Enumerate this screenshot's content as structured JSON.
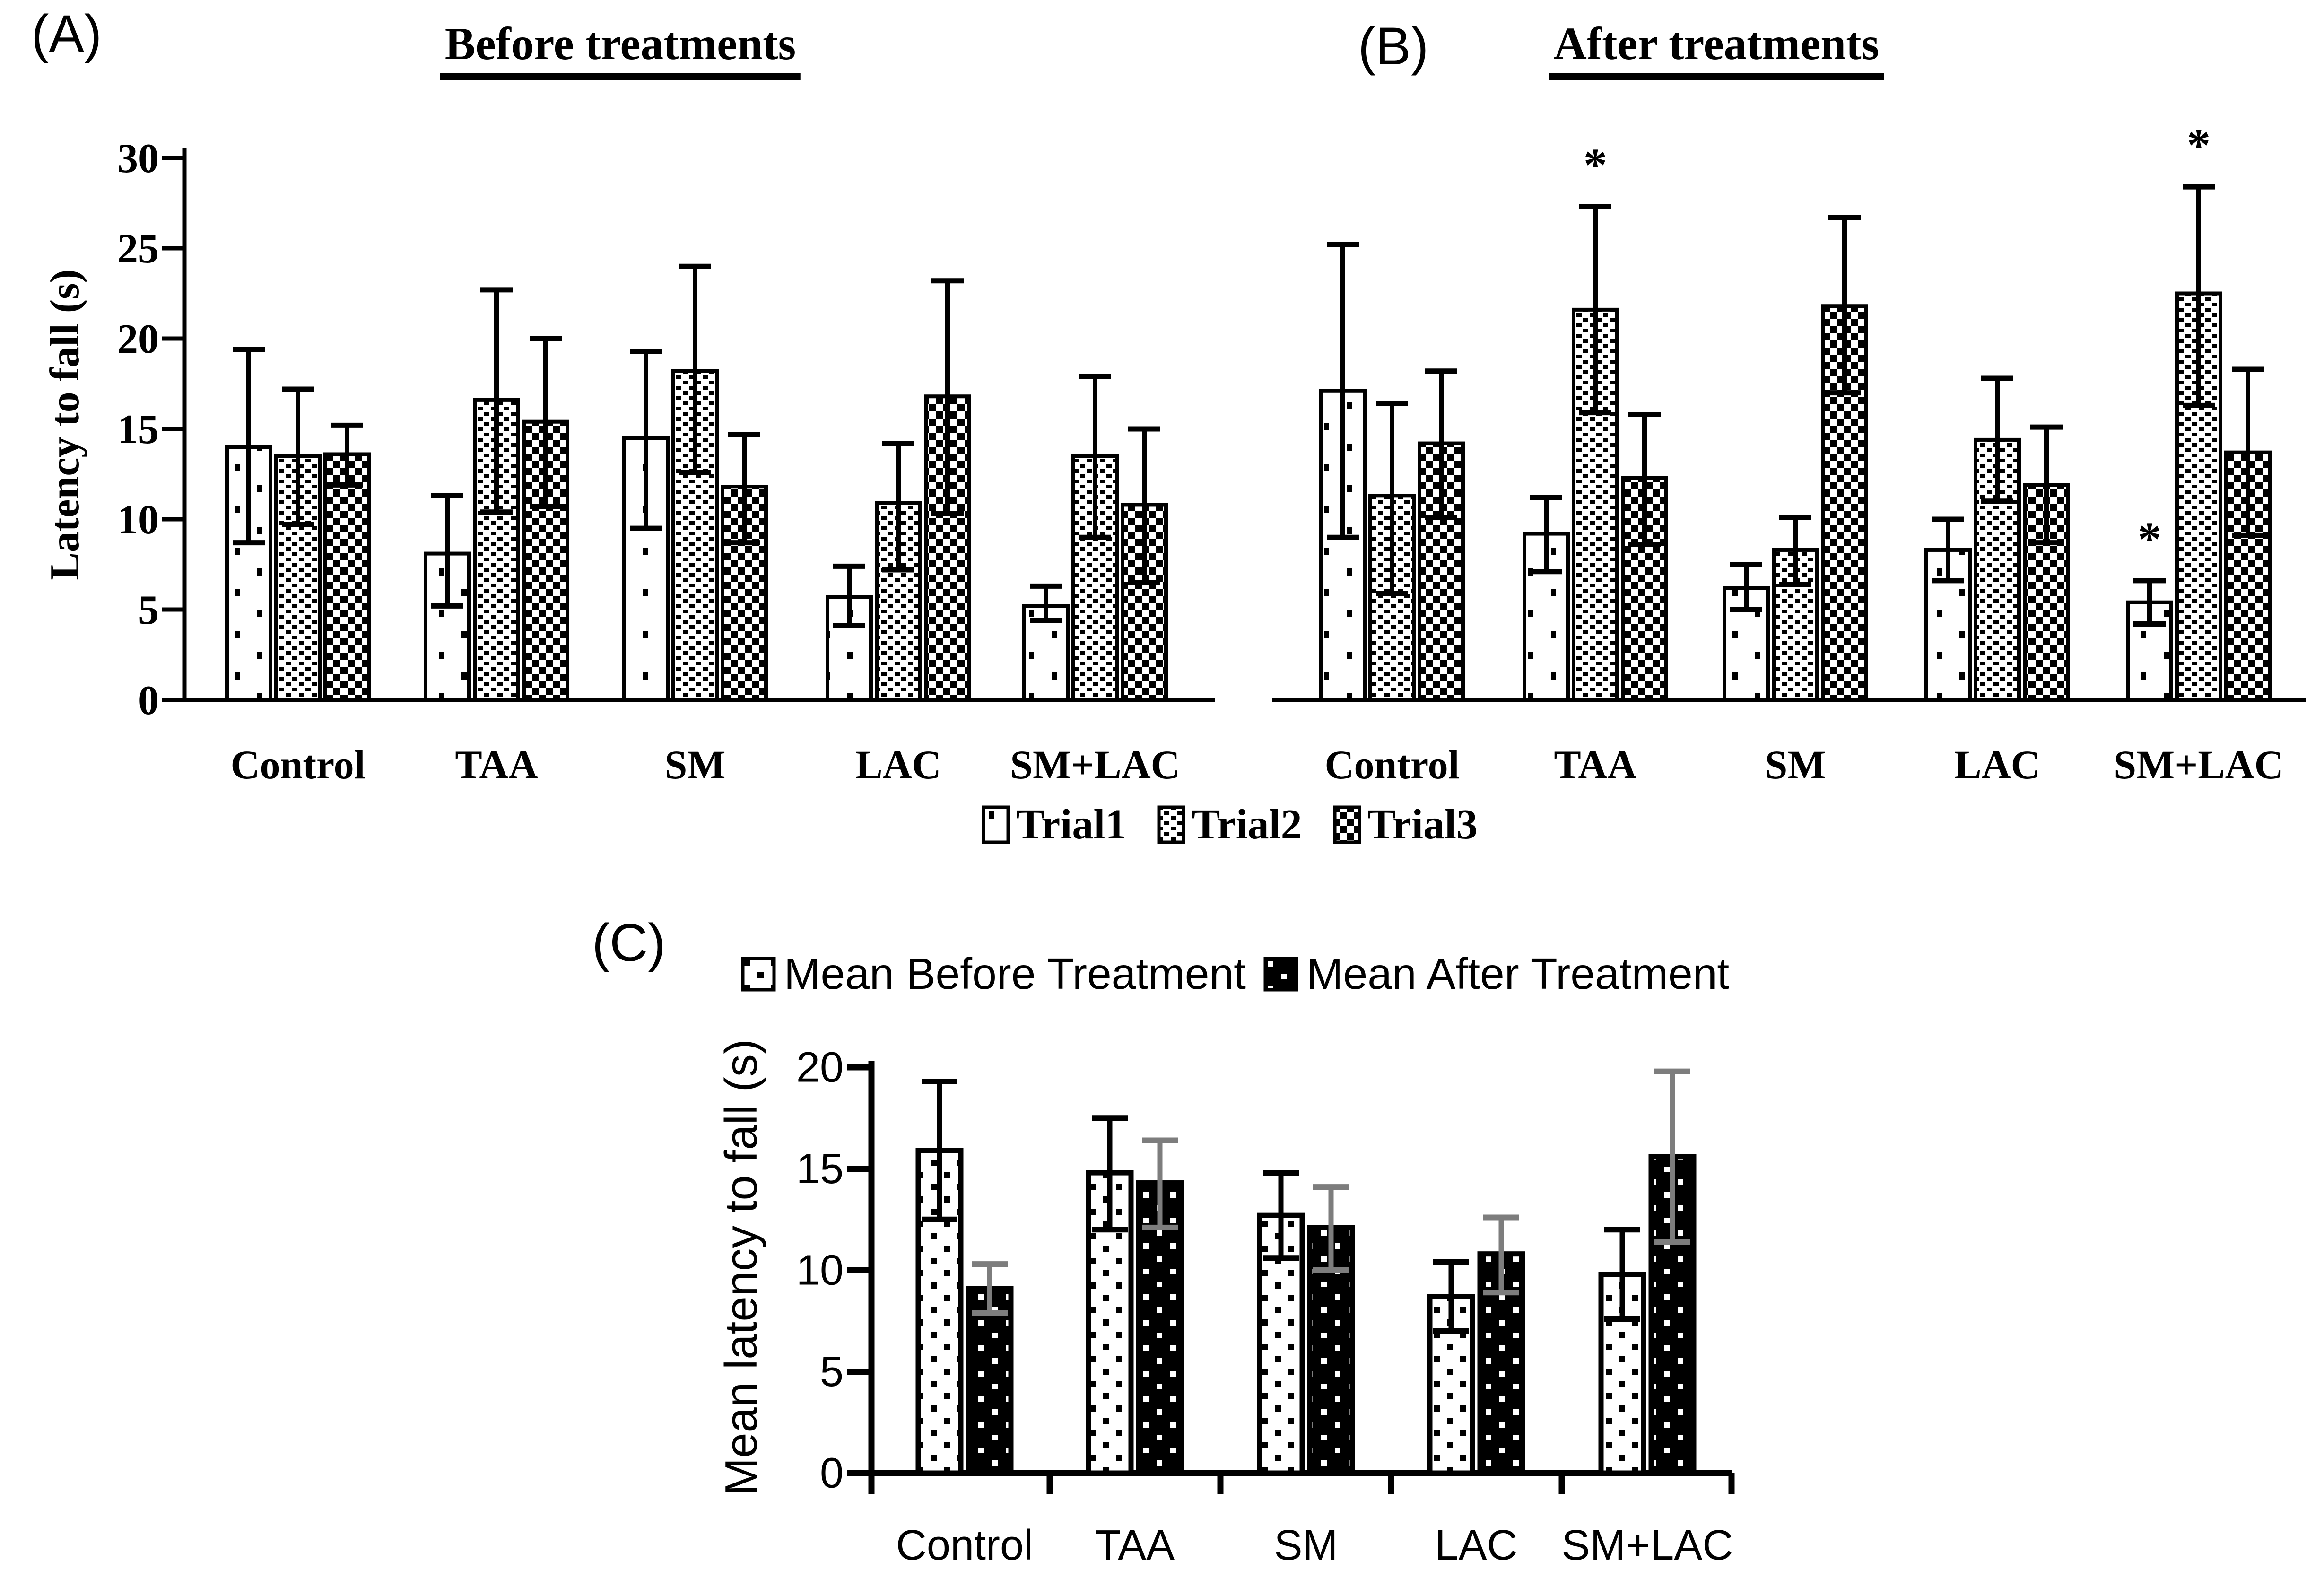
{
  "figure": {
    "panel_a": {
      "letter": "(A)",
      "title": "Before treatments"
    },
    "panel_b": {
      "letter": "(B)",
      "title": "After treatments"
    },
    "panel_c": {
      "letter": "(C)"
    }
  },
  "legend_trials": [
    {
      "label": "Trial1",
      "pattern": "sparse-dots"
    },
    {
      "label": "Trial2",
      "pattern": "dense-dots"
    },
    {
      "label": "Trial3",
      "pattern": "checker"
    }
  ],
  "legend_means": [
    {
      "label": "Mean Before Treatment",
      "pattern": "light-dots"
    },
    {
      "label": "Mean After Treatment",
      "pattern": "black-dots"
    }
  ],
  "chart_data": [
    {
      "id": "A",
      "type": "bar",
      "title": "Before treatments",
      "xlabel": "",
      "ylabel": "Latency to fall (s)",
      "ylim": [
        0,
        30
      ],
      "yticks": [
        0,
        5,
        10,
        15,
        20,
        25,
        30
      ],
      "grid": false,
      "legend_position": "shared-below",
      "categories": [
        "Control",
        "TAA",
        "SM",
        "LAC",
        "SM+LAC"
      ],
      "series": [
        {
          "name": "Trial1",
          "pattern": "sparse-dots",
          "err_color": "#000000",
          "values": [
            14.0,
            8.1,
            14.5,
            5.7,
            5.2
          ],
          "err_lo": [
            8.7,
            5.2,
            9.5,
            4.1,
            4.4
          ],
          "err_hi": [
            19.4,
            11.3,
            19.3,
            7.4,
            6.3
          ]
        },
        {
          "name": "Trial2",
          "pattern": "dense-dots",
          "err_color": "#000000",
          "values": [
            13.5,
            16.6,
            18.2,
            10.9,
            13.5
          ],
          "err_lo": [
            9.7,
            10.4,
            12.6,
            7.2,
            9.0
          ],
          "err_hi": [
            17.2,
            22.7,
            24.0,
            14.2,
            17.9
          ]
        },
        {
          "name": "Trial3",
          "pattern": "checker",
          "err_color": "#000000",
          "values": [
            13.6,
            15.4,
            11.8,
            16.8,
            10.8
          ],
          "err_lo": [
            11.9,
            10.7,
            8.7,
            10.3,
            6.5
          ],
          "err_hi": [
            15.2,
            20.0,
            14.7,
            23.2,
            15.0
          ]
        }
      ],
      "annotations": []
    },
    {
      "id": "B",
      "type": "bar",
      "title": "After treatments",
      "xlabel": "",
      "ylabel": "",
      "ylim": [
        0,
        30
      ],
      "yticks": [],
      "grid": false,
      "legend_position": "shared-below",
      "categories": [
        "Control",
        "TAA",
        "SM",
        "LAC",
        "SM+LAC"
      ],
      "series": [
        {
          "name": "Trial1",
          "pattern": "sparse-dots",
          "err_color": "#000000",
          "values": [
            17.1,
            9.2,
            6.2,
            8.3,
            5.4
          ],
          "err_lo": [
            9.0,
            7.1,
            5.0,
            6.6,
            4.2
          ],
          "err_hi": [
            25.2,
            11.2,
            7.5,
            10.0,
            6.6
          ]
        },
        {
          "name": "Trial2",
          "pattern": "dense-dots",
          "err_color": "#000000",
          "values": [
            11.3,
            21.6,
            8.3,
            14.4,
            22.5
          ],
          "err_lo": [
            5.9,
            15.9,
            6.4,
            11.0,
            16.3
          ],
          "err_hi": [
            16.4,
            27.3,
            10.1,
            17.8,
            28.4
          ]
        },
        {
          "name": "Trial3",
          "pattern": "checker",
          "err_color": "#000000",
          "values": [
            14.2,
            12.3,
            21.8,
            11.9,
            13.7
          ],
          "err_lo": [
            10.1,
            8.6,
            17.0,
            8.7,
            9.1
          ],
          "err_hi": [
            18.2,
            15.8,
            26.7,
            15.1,
            18.3
          ]
        }
      ],
      "annotations": [
        {
          "category": "TAA",
          "series": "Trial2",
          "text": "*"
        },
        {
          "category": "SM+LAC",
          "series": "Trial1",
          "text": "*"
        },
        {
          "category": "SM+LAC",
          "series": "Trial2",
          "text": "*"
        }
      ]
    },
    {
      "id": "C",
      "type": "bar",
      "title": "",
      "xlabel": "",
      "ylabel": "Mean latency to fall (s)",
      "ylim": [
        0,
        20
      ],
      "yticks": [
        0,
        5,
        10,
        15,
        20
      ],
      "grid": false,
      "legend_position": "above",
      "categories": [
        "Control",
        "TAA",
        "SM",
        "LAC",
        "SM+LAC"
      ],
      "series": [
        {
          "name": "Mean Before Treatment",
          "pattern": "light-dots",
          "err_color": "#000000",
          "values": [
            15.9,
            14.8,
            12.7,
            8.7,
            9.8
          ],
          "err_lo": [
            12.5,
            12.0,
            10.6,
            7.0,
            7.6
          ],
          "err_hi": [
            19.3,
            17.5,
            14.8,
            10.4,
            12.0
          ]
        },
        {
          "name": "Mean After Treatment",
          "pattern": "black-dots",
          "err_color": "#7d7d7d",
          "values": [
            9.1,
            14.3,
            12.1,
            10.8,
            15.6
          ],
          "err_lo": [
            7.9,
            12.1,
            10.0,
            8.9,
            11.4
          ],
          "err_hi": [
            10.3,
            16.4,
            14.1,
            12.6,
            19.8
          ]
        }
      ],
      "annotations": []
    }
  ]
}
